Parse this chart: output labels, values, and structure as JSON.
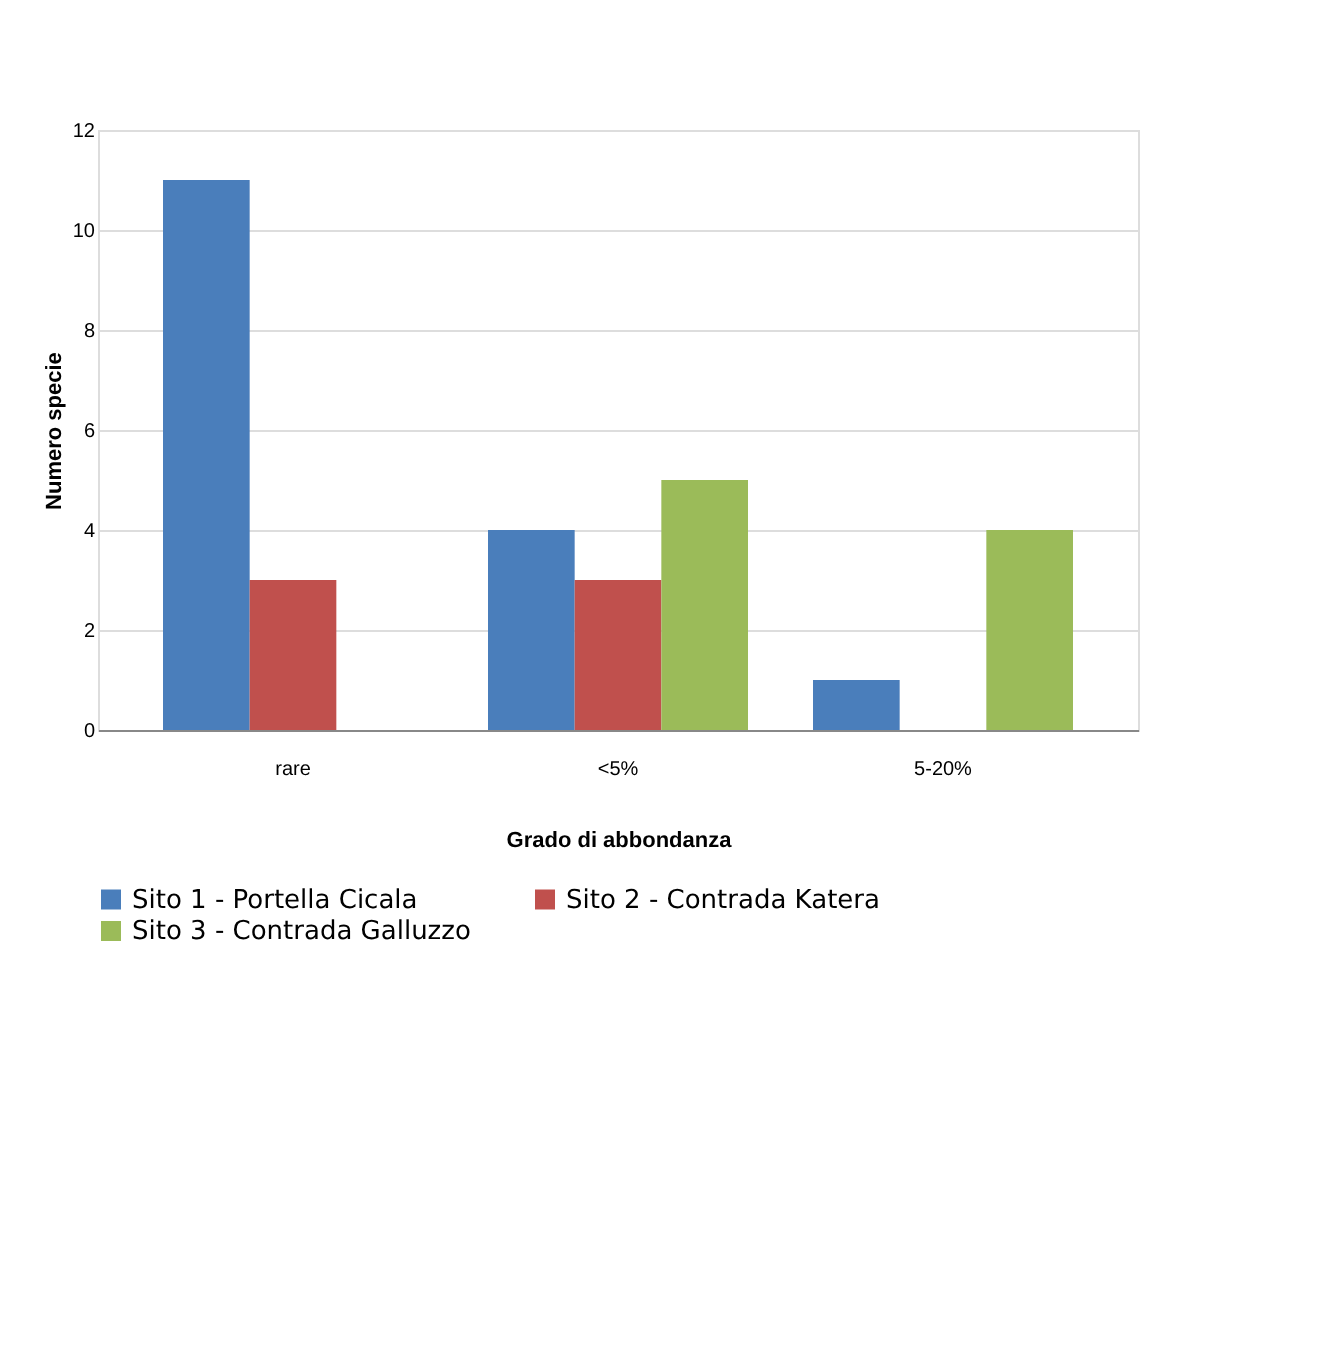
{
  "chart_data": {
    "type": "bar",
    "xlabel": "Grado di abbondanza",
    "ylabel": "Numero specie",
    "categories": [
      "rare",
      "<5%",
      "5-20%"
    ],
    "series": [
      {
        "name": "Sito 1 - Portella Cicala",
        "color": "#4a7ebb",
        "values": [
          11,
          4,
          1
        ]
      },
      {
        "name": "Sito 2 - Contrada Katera",
        "color": "#c0504d",
        "values": [
          3,
          3,
          0
        ]
      },
      {
        "name": "Sito 3 - Contrada Galluzzo",
        "color": "#9bbb59",
        "values": [
          0,
          5,
          4
        ]
      }
    ],
    "ylim": [
      0,
      12
    ],
    "yticks": [
      0,
      2,
      4,
      6,
      8,
      10,
      12
    ],
    "grid": "y",
    "legend": "bottom"
  }
}
